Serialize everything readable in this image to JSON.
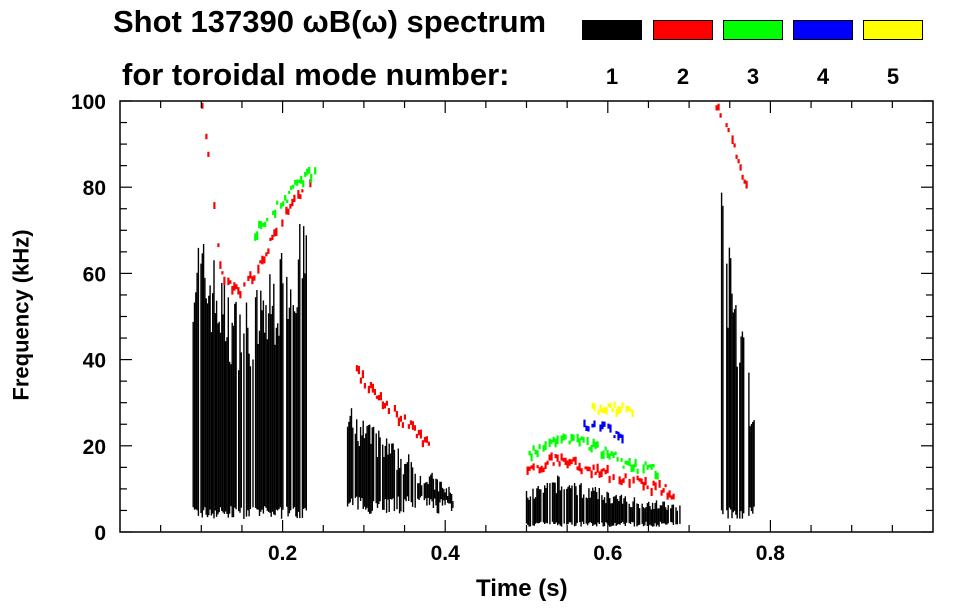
{
  "chart_data": {
    "type": "heatmap",
    "title_line1": "Shot 137390 ωB(ω) spectrum",
    "title_line2": "for toroidal mode number:",
    "xlabel": "Time (s)",
    "ylabel": "Frequency (kHz)",
    "xlim": [
      0.0,
      1.0
    ],
    "ylim": [
      0,
      100
    ],
    "x_ticks": [
      0.2,
      0.4,
      0.6,
      0.8
    ],
    "x_tick_labels": [
      "0.2",
      "0.4",
      "0.6",
      "0.8"
    ],
    "y_ticks": [
      0,
      20,
      40,
      60,
      80,
      100
    ],
    "y_tick_labels": [
      "0",
      "20",
      "40",
      "60",
      "80",
      "100"
    ],
    "legend": [
      {
        "label": "1",
        "color": "#000000"
      },
      {
        "label": "2",
        "color": "#ff0000"
      },
      {
        "label": "3",
        "color": "#00ff00"
      },
      {
        "label": "4",
        "color": "#0000ff"
      },
      {
        "label": "5",
        "color": "#ffff00"
      }
    ],
    "regions": [
      {
        "mode": "1",
        "t": [
          0.09,
          0.23
        ],
        "f_low": 5,
        "f_high": [
          65,
          60,
          50,
          50,
          55,
          62,
          67
        ]
      },
      {
        "mode": "1",
        "t": [
          0.28,
          0.41
        ],
        "f_low": 7,
        "f_high": [
          28,
          24,
          21,
          18,
          15,
          12,
          9
        ]
      },
      {
        "mode": "1",
        "t": [
          0.5,
          0.69
        ],
        "f_low": 2,
        "f_high": [
          9,
          12,
          10,
          8,
          7,
          6
        ]
      },
      {
        "mode": "1",
        "t": [
          0.74,
          0.78
        ],
        "f_low": 5,
        "f_high": [
          75,
          60,
          50,
          40,
          25
        ]
      },
      {
        "mode": "2",
        "t": [
          0.1,
          0.24
        ],
        "f": [
          100,
          60,
          55,
          62,
          70,
          78,
          82
        ]
      },
      {
        "mode": "2",
        "t": [
          0.29,
          0.38
        ],
        "f": [
          37,
          32,
          28,
          24,
          20
        ]
      },
      {
        "mode": "2",
        "t": [
          0.5,
          0.68
        ],
        "f": [
          14,
          17,
          15,
          13,
          11,
          9
        ]
      },
      {
        "mode": "2",
        "t": [
          0.73,
          0.77
        ],
        "f": [
          100,
          95,
          88,
          80
        ]
      },
      {
        "mode": "3",
        "t": [
          0.16,
          0.24
        ],
        "f": [
          68,
          74,
          80,
          84
        ]
      },
      {
        "mode": "3",
        "t": [
          0.5,
          0.66
        ],
        "f": [
          18,
          22,
          20,
          16,
          14
        ]
      },
      {
        "mode": "4",
        "t": [
          0.57,
          0.62
        ],
        "f": [
          25,
          24,
          21
        ]
      },
      {
        "mode": "5",
        "t": [
          0.58,
          0.63
        ],
        "f": [
          29,
          28
        ]
      }
    ]
  }
}
